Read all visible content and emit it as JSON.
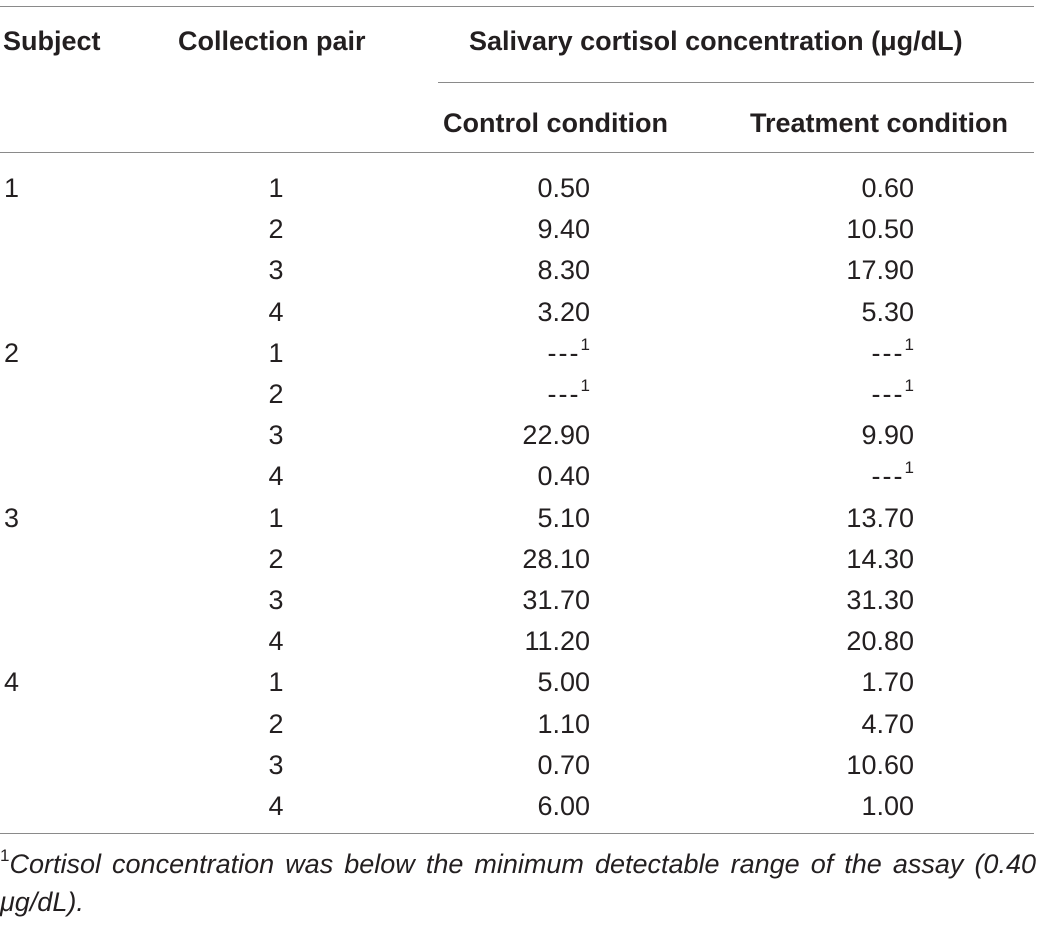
{
  "table": {
    "headers": {
      "subject": "Subject",
      "collection_pair": "Collection pair",
      "group": "Salivary cortisol concentration (μg/dL)",
      "control": "Control condition",
      "treatment": "Treatment condition"
    },
    "rows": [
      {
        "subject": "1",
        "pair": "1",
        "control": "0.50",
        "treatment": "0.60"
      },
      {
        "subject": "",
        "pair": "2",
        "control": "9.40",
        "treatment": "10.50"
      },
      {
        "subject": "",
        "pair": "3",
        "control": "8.30",
        "treatment": "17.90"
      },
      {
        "subject": "",
        "pair": "4",
        "control": "3.20",
        "treatment": "5.30"
      },
      {
        "subject": "2",
        "pair": "1",
        "control": "---",
        "control_note": "1",
        "treatment": "---",
        "treatment_note": "1"
      },
      {
        "subject": "",
        "pair": "2",
        "control": "---",
        "control_note": "1",
        "treatment": "---",
        "treatment_note": "1"
      },
      {
        "subject": "",
        "pair": "3",
        "control": "22.90",
        "treatment": "9.90"
      },
      {
        "subject": "",
        "pair": "4",
        "control": "0.40",
        "treatment": "---",
        "treatment_note": "1"
      },
      {
        "subject": "3",
        "pair": "1",
        "control": "5.10",
        "treatment": "13.70"
      },
      {
        "subject": "",
        "pair": "2",
        "control": "28.10",
        "treatment": "14.30"
      },
      {
        "subject": "",
        "pair": "3",
        "control": "31.70",
        "treatment": "31.30"
      },
      {
        "subject": "",
        "pair": "4",
        "control": "11.20",
        "treatment": "20.80"
      },
      {
        "subject": "4",
        "pair": "1",
        "control": "5.00",
        "treatment": "1.70"
      },
      {
        "subject": "",
        "pair": "2",
        "control": "1.10",
        "treatment": "4.70"
      },
      {
        "subject": "",
        "pair": "3",
        "control": "0.70",
        "treatment": "10.60"
      },
      {
        "subject": "",
        "pair": "4",
        "control": "6.00",
        "treatment": "1.00"
      }
    ]
  },
  "footnote": {
    "marker": "1",
    "text": "Cortisol concentration was below the minimum detectable range of the assay (0.40 μg/dL)."
  }
}
